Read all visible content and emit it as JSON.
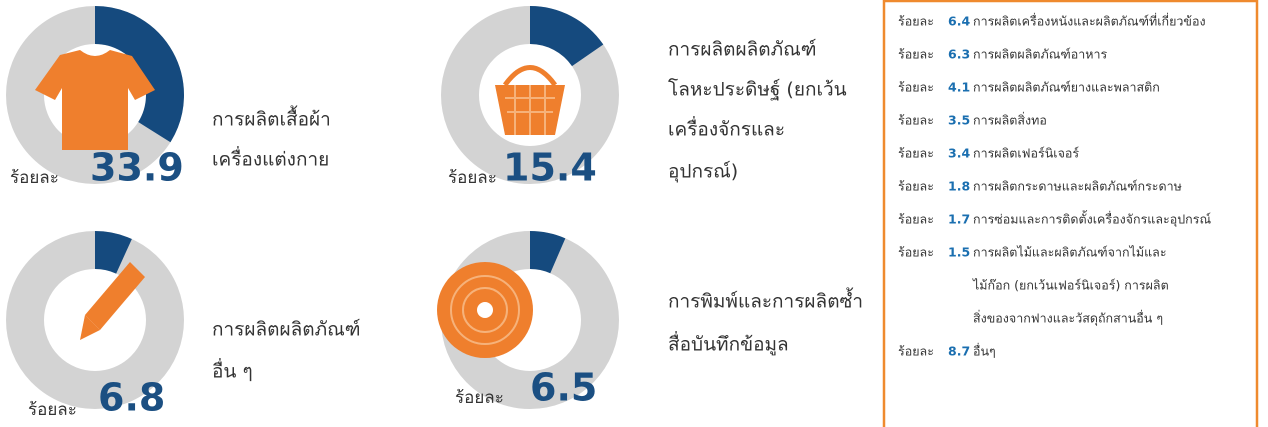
{
  "chart_data": [
    {
      "type": "pie",
      "label_prefix": "ร้อยละ",
      "values": [
        33.9
      ],
      "color": "#154a7e",
      "rest_color": "#d3d3d3",
      "name_lines": [
        "การผลิตเสื้อผ้า",
        "เครื่องแต่งกาย"
      ]
    },
    {
      "type": "pie",
      "label_prefix": "ร้อยละ",
      "values": [
        15.4
      ],
      "color": "#154a7e",
      "rest_color": "#d3d3d3",
      "name_lines": [
        "การผลิตผลิตภัณฑ์",
        "โลหะประดิษฐ์ (ยกเว้น",
        "เครื่องจักรและ",
        "อุปกรณ์)"
      ]
    },
    {
      "type": "pie",
      "label_prefix": "ร้อยละ",
      "values": [
        6.8
      ],
      "color": "#154a7e",
      "rest_color": "#d3d3d3",
      "name_lines": [
        "การผลิตผลิตภัณฑ์",
        "อื่น ๆ"
      ]
    },
    {
      "type": "pie",
      "label_prefix": "ร้อยละ",
      "values": [
        6.5
      ],
      "color": "#154a7e",
      "rest_color": "#d3d3d3",
      "name_lines": [
        "การพิมพ์และการผลิตซ้ำ",
        "สื่อบันทึกข้อมูล"
      ]
    }
  ],
  "list": [
    {
      "prefix": "ร้อยละ",
      "value": 6.4,
      "lines": [
        "การผลิตเครื่องหนังและผลิตภัณฑ์ที่เกี่ยวข้อง"
      ]
    },
    {
      "prefix": "ร้อยละ",
      "value": 6.3,
      "lines": [
        "การผลิตผลิตภัณฑ์อาหาร"
      ]
    },
    {
      "prefix": "ร้อยละ",
      "value": 4.1,
      "lines": [
        "การผลิตผลิตภัณฑ์ยางและพลาสติก"
      ]
    },
    {
      "prefix": "ร้อยละ",
      "value": 3.5,
      "lines": [
        "การผลิตสิ่งทอ"
      ]
    },
    {
      "prefix": "ร้อยละ",
      "value": 3.4,
      "lines": [
        "การผลิตเฟอร์นิเจอร์"
      ]
    },
    {
      "prefix": "ร้อยละ",
      "value": 1.8,
      "lines": [
        "การผลิตกระดาษและผลิตภัณฑ์กระดาษ"
      ]
    },
    {
      "prefix": "ร้อยละ",
      "value": 1.7,
      "lines": [
        "การซ่อมและการติดตั้งเครื่องจักรและอุปกรณ์"
      ]
    },
    {
      "prefix": "ร้อยละ",
      "value": 1.5,
      "lines": [
        "การผลิตไม้และผลิตภัณฑ์จากไม้และ",
        "ไม้ก๊อก (ยกเว้นเฟอร์นิเจอร์) การผลิต",
        "สิ่งของจากฟางและวัสดุถักสานอื่น ๆ"
      ]
    },
    {
      "prefix": "ร้อยละ",
      "value": 8.7,
      "lines": [
        "อื่นๆ"
      ]
    }
  ]
}
